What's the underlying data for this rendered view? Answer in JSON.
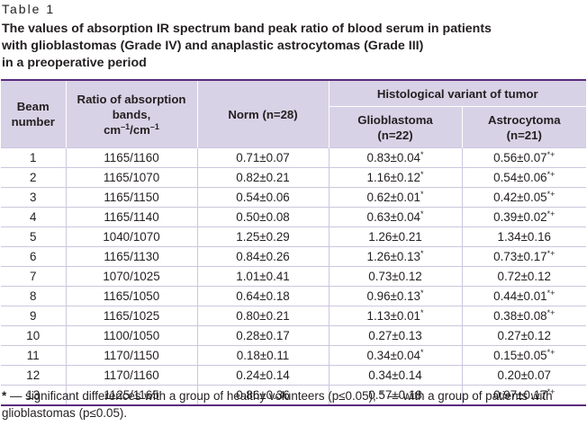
{
  "table_label": "Table 1",
  "caption": {
    "line1": "The values of absorption IR spectrum band peak ratio of blood serum in patients",
    "line2": "with glioblastomas (Grade IV) and anaplastic astrocytomas (Grade III)",
    "line3": "in a preoperative period"
  },
  "headers": {
    "beam_line1": "Beam",
    "beam_line2": "number",
    "ratio_line1": "Ratio of absorption",
    "ratio_line2": "bands,",
    "ratio_line3_a": "cm",
    "ratio_line3_sup_a": "–1",
    "ratio_line3_b": "/cm",
    "ratio_line3_sup_b": "–1",
    "norm": "Norm (n=28)",
    "histological": "Histological variant of tumor",
    "glioblastoma_line1": "Glioblastoma",
    "glioblastoma_line2": "(n=22)",
    "astrocytoma_line1": "Astrocytoma",
    "astrocytoma_line2": "(n=21)"
  },
  "rows": [
    {
      "beam": "1",
      "ratio": "1165/1160",
      "norm": "0.71±0.07",
      "glio": "0.83±0.04",
      "glio_mark": "*",
      "astro": "0.56±0.07",
      "astro_mark": "*+"
    },
    {
      "beam": "2",
      "ratio": "1165/1070",
      "norm": "0.82±0.21",
      "glio": "1.16±0.12",
      "glio_mark": "*",
      "astro": "0.54±0.06",
      "astro_mark": "*+"
    },
    {
      "beam": "3",
      "ratio": "1165/1150",
      "norm": "0.54±0.06",
      "glio": "0.62±0.01",
      "glio_mark": "*",
      "astro": "0.42±0.05",
      "astro_mark": "*+"
    },
    {
      "beam": "4",
      "ratio": "1165/1140",
      "norm": "0.50±0.08",
      "glio": "0.63±0.04",
      "glio_mark": "*",
      "astro": "0.39±0.02",
      "astro_mark": "*+"
    },
    {
      "beam": "5",
      "ratio": "1040/1070",
      "norm": "1.25±0.29",
      "glio": "1.26±0.21",
      "glio_mark": "",
      "astro": "1.34±0.16",
      "astro_mark": ""
    },
    {
      "beam": "6",
      "ratio": "1165/1130",
      "norm": "0.84±0.26",
      "glio": "1.26±0.13",
      "glio_mark": "*",
      "astro": "0.73±0.17",
      "astro_mark": "*+"
    },
    {
      "beam": "7",
      "ratio": "1070/1025",
      "norm": "1.01±0.41",
      "glio": "0.73±0.12",
      "glio_mark": "",
      "astro": "0.72±0.12",
      "astro_mark": ""
    },
    {
      "beam": "8",
      "ratio": "1165/1050",
      "norm": "0.64±0.18",
      "glio": "0.96±0.13",
      "glio_mark": "*",
      "astro": "0.44±0.01",
      "astro_mark": "*+"
    },
    {
      "beam": "9",
      "ratio": "1165/1025",
      "norm": "0.80±0.21",
      "glio": "1.13±0.01",
      "glio_mark": "*",
      "astro": "0.38±0.08",
      "astro_mark": "*+"
    },
    {
      "beam": "10",
      "ratio": "1100/1050",
      "norm": "0.28±0.17",
      "glio": "0.27±0.13",
      "glio_mark": "",
      "astro": "0.27±0.12",
      "astro_mark": ""
    },
    {
      "beam": "11",
      "ratio": "1170/1150",
      "norm": "0.18±0.11",
      "glio": "0.34±0.04",
      "glio_mark": "*",
      "astro": "0.15±0.05",
      "astro_mark": "*+"
    },
    {
      "beam": "12",
      "ratio": "1170/1160",
      "norm": "0.24±0.14",
      "glio": "0.34±0.14",
      "glio_mark": "",
      "astro": "0.20±0.07",
      "astro_mark": ""
    },
    {
      "beam": "13",
      "ratio": "1125/1165",
      "norm": "0.86±0.36",
      "glio": "0.57±0.18",
      "glio_mark": "",
      "astro": "0.97±0.17",
      "astro_mark": "*+"
    }
  ],
  "footnote": {
    "mark1": "*",
    "text1": " — significant differences with a group of healthy volunteers (p≤0.05); ",
    "mark2": "+",
    "text2": " — with a group of patients with glioblastomas (p≤0.05)."
  },
  "colors": {
    "header_bg": "#d8d2e6",
    "rule": "#5b2a7e",
    "row_line": "#cdc6de"
  }
}
